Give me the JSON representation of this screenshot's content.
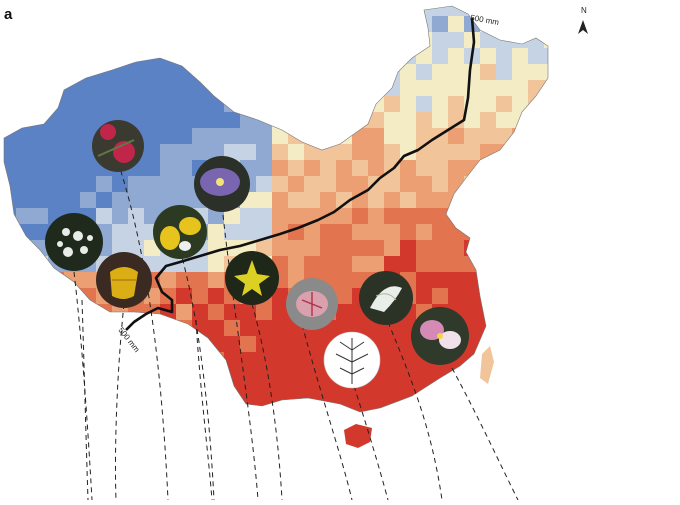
{
  "panel": {
    "label": "a"
  },
  "compass": {
    "letter": "N"
  },
  "isohyet": {
    "label_top": "500 mm",
    "label_bottom": "500 mm"
  },
  "map": {
    "palette": {
      "deep_blue": "#5b82c4",
      "blue": "#8fa9d2",
      "pale_blue": "#c6d3e4",
      "cream": "#f3ecc4",
      "light_orange": "#f2c49a",
      "orange": "#eb9f73",
      "dark_orange": "#e2744f",
      "red": "#d2382b",
      "boundary_line": "#111111"
    }
  },
  "flowers": [
    {
      "name": "magenta-bell-flower",
      "color": "#c0264a"
    },
    {
      "name": "purple-flower",
      "color": "#7a66b0"
    },
    {
      "name": "yellow-orchid-flower",
      "color": "#e7c31d"
    },
    {
      "name": "white-cluster-flower",
      "color": "#e8ece8"
    },
    {
      "name": "yellow-bell-flower",
      "color": "#dcae16"
    },
    {
      "name": "yellow-star-flower",
      "color": "#dcd024"
    },
    {
      "name": "pink-lily-flower",
      "color": "#d9a0ad"
    },
    {
      "name": "white-lily-flower",
      "color": "#eaeee8"
    },
    {
      "name": "white-plant-drawing",
      "color": "#ffffff"
    },
    {
      "name": "pink-white-orchid-flower",
      "color": "#d48ab5"
    }
  ]
}
